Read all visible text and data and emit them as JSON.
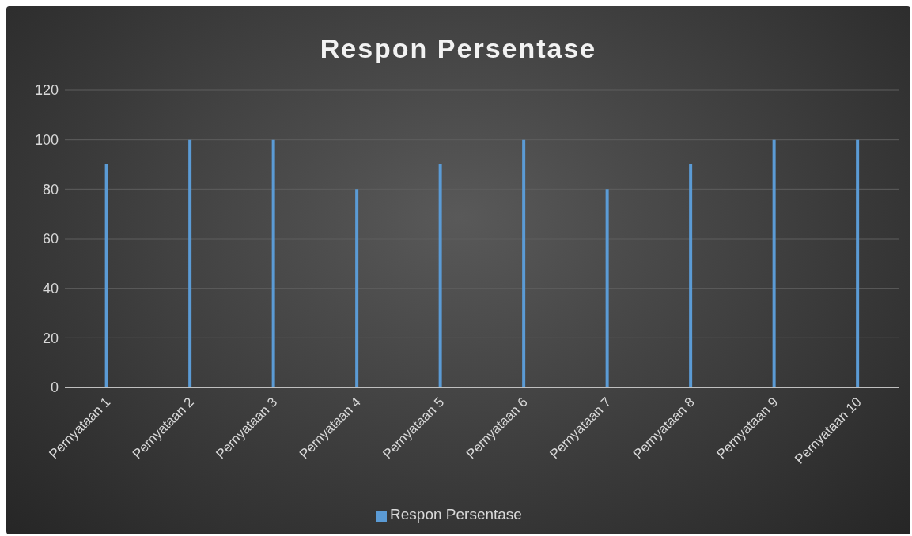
{
  "chart_data": {
    "type": "bar",
    "title": "Respon Persentase",
    "categories": [
      "Pernyataan 1",
      "Pernyataan 2",
      "Pernyataan 3",
      "Pernyataan 4",
      "Pernyataan 5",
      "Pernyataan 6",
      "Pernyataan 7",
      "Pernyataan 8",
      "Pernyataan 9",
      "Pernyataan 10"
    ],
    "series": [
      {
        "name": "Respon Persentase",
        "color": "#5b9bd5",
        "values": [
          90,
          100,
          100,
          80,
          90,
          100,
          80,
          90,
          100,
          100
        ]
      }
    ],
    "ylim": [
      0,
      120
    ],
    "yticks": [
      0,
      20,
      40,
      60,
      80,
      100,
      120
    ],
    "grid": "y",
    "legend": "bottom"
  }
}
